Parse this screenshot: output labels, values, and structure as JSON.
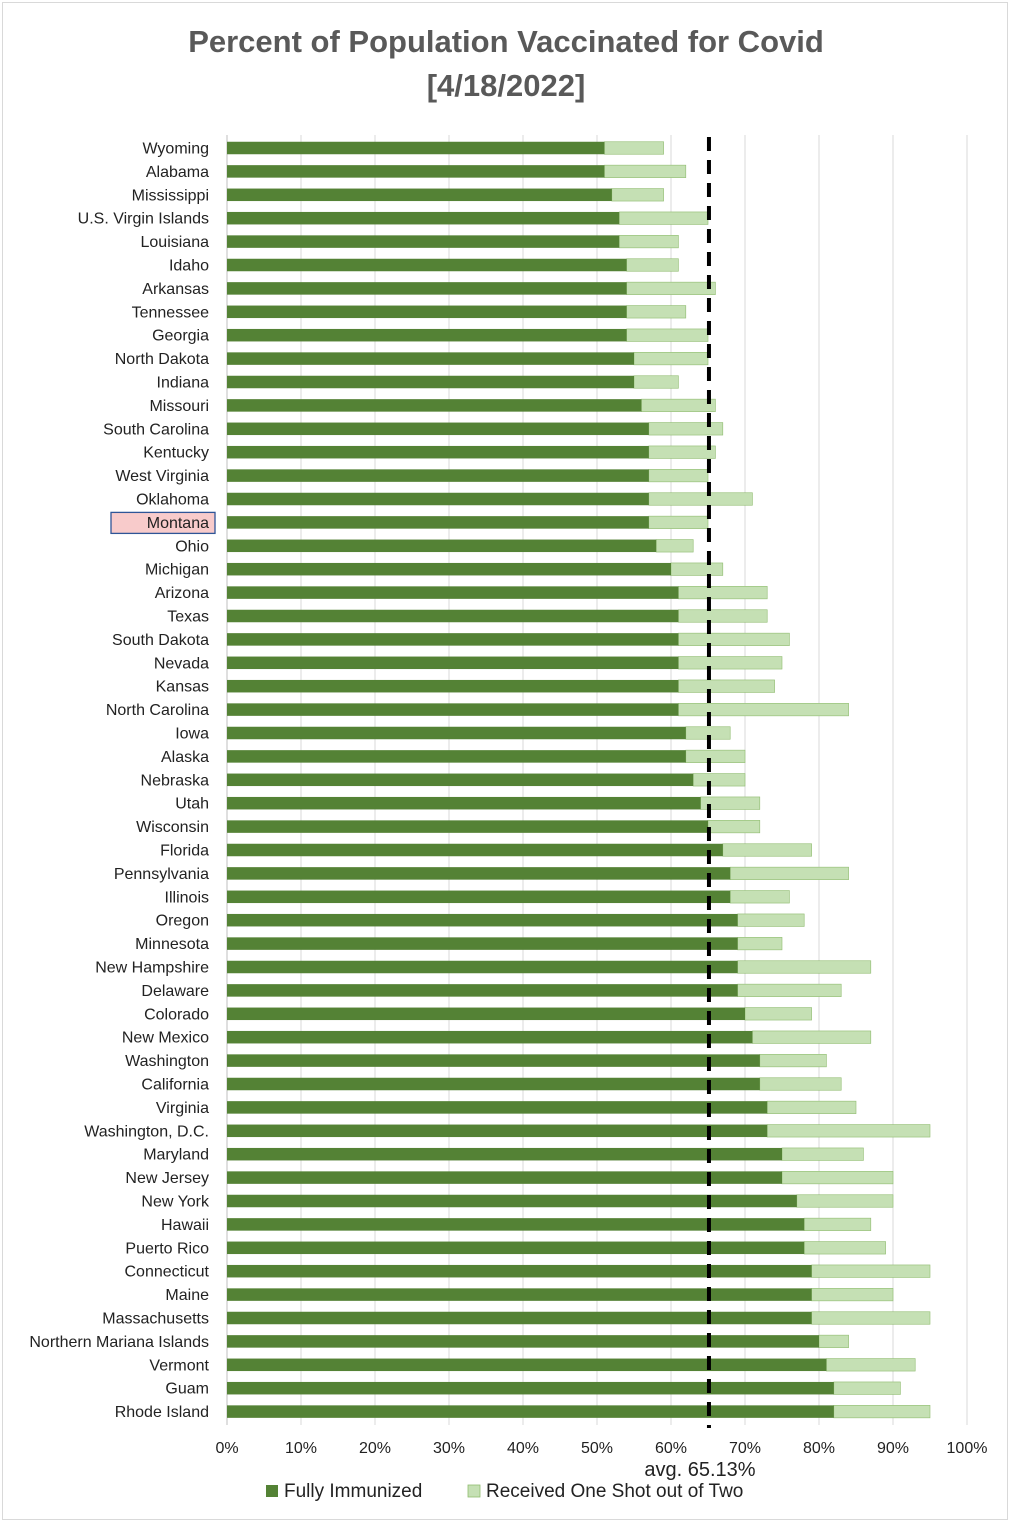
{
  "chart_data": {
    "type": "bar",
    "orientation": "horizontal",
    "stacked": true,
    "title": "Percent of Population Vaccinated for Covid",
    "subtitle": "[4/18/2022]",
    "xlim": [
      0,
      100
    ],
    "ticks": [
      0,
      10,
      20,
      30,
      40,
      50,
      60,
      70,
      80,
      90,
      100
    ],
    "tick_labels": [
      "0%",
      "10%",
      "20%",
      "30%",
      "40%",
      "50%",
      "60%",
      "70%",
      "80%",
      "90%",
      "100%"
    ],
    "grid": true,
    "legend_position": "bottom",
    "highlighted_category": "Montana",
    "average": {
      "value": 65.13,
      "label": "avg. 65.13%"
    },
    "colors": {
      "fully": "#548235",
      "one_shot": "#c5e0b4",
      "one_shot_edge": "#8fbc6f",
      "highlight_fill": "#f8cbcb",
      "highlight_border": "#2f5597",
      "grid": "#d9d9d9"
    },
    "categories": [
      "Wyoming",
      "Alabama",
      "Mississippi",
      "U.S. Virgin Islands",
      "Louisiana",
      "Idaho",
      "Arkansas",
      "Tennessee",
      "Georgia",
      "North Dakota",
      "Indiana",
      "Missouri",
      "South Carolina",
      "Kentucky",
      "West Virginia",
      "Oklahoma",
      "Montana",
      "Ohio",
      "Michigan",
      "Arizona",
      "Texas",
      "South Dakota",
      "Nevada",
      "Kansas",
      "North Carolina",
      "Iowa",
      "Alaska",
      "Nebraska",
      "Utah",
      "Wisconsin",
      "Florida",
      "Pennsylvania",
      "Illinois",
      "Oregon",
      "Minnesota",
      "New Hampshire",
      "Delaware",
      "Colorado",
      "New Mexico",
      "Washington",
      "California",
      "Virginia",
      "Washington, D.C.",
      "Maryland",
      "New Jersey",
      "New York",
      "Hawaii",
      "Puerto Rico",
      "Connecticut",
      "Maine",
      "Massachusetts",
      "Northern Mariana Islands",
      "Vermont",
      "Guam",
      "Rhode Island"
    ],
    "series": [
      {
        "name": "Fully Immunized",
        "values": [
          51,
          51,
          52,
          53,
          53,
          54,
          54,
          54,
          54,
          55,
          55,
          56,
          57,
          57,
          57,
          57,
          57,
          58,
          60,
          61,
          61,
          61,
          61,
          61,
          61,
          62,
          62,
          63,
          64,
          65,
          67,
          68,
          68,
          69,
          69,
          69,
          69,
          70,
          71,
          72,
          72,
          73,
          73,
          75,
          75,
          77,
          78,
          78,
          79,
          79,
          79,
          80,
          81,
          82,
          82
        ]
      },
      {
        "name": "Received One Shot out of Two",
        "values": [
          8,
          11,
          7,
          12,
          8,
          7,
          12,
          8,
          11,
          10,
          6,
          10,
          10,
          9,
          8,
          14,
          8,
          5,
          7,
          12,
          12,
          15,
          14,
          13,
          23,
          6,
          8,
          7,
          8,
          7,
          12,
          16,
          8,
          9,
          6,
          18,
          14,
          9,
          16,
          9,
          11,
          12,
          22,
          11,
          15,
          13,
          9,
          11,
          16,
          11,
          16,
          4,
          12,
          9,
          13
        ]
      }
    ]
  }
}
